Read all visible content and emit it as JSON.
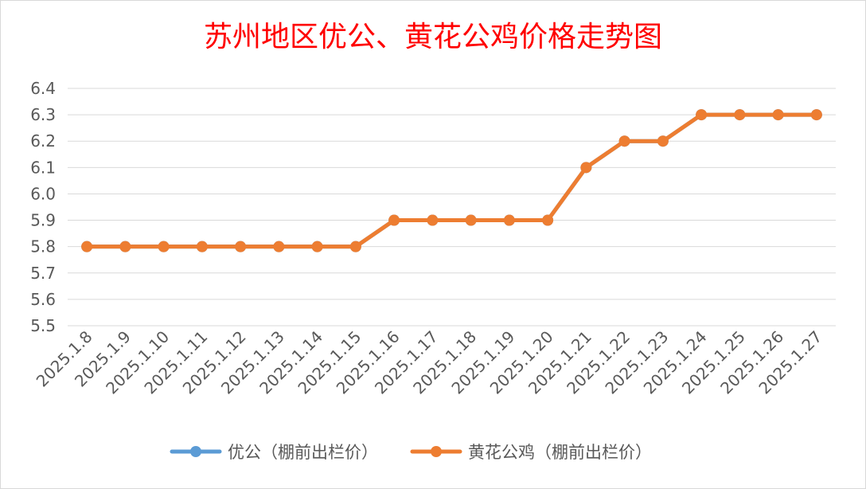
{
  "chart_data": {
    "type": "line",
    "title": "苏州地区优公、黄花公鸡价格走势图",
    "xlabel": "",
    "ylabel": "",
    "categories": [
      "2025.1.8",
      "2025.1.9",
      "2025.1.10",
      "2025.1.11",
      "2025.1.12",
      "2025.1.13",
      "2025.1.14",
      "2025.1.15",
      "2025.1.16",
      "2025.1.17",
      "2025.1.18",
      "2025.1.19",
      "2025.1.20",
      "2025.1.21",
      "2025.1.22",
      "2025.1.23",
      "2025.1.24",
      "2025.1.25",
      "2025.1.26",
      "2025.1.27"
    ],
    "yticks": [
      "5.5",
      "5.6",
      "5.7",
      "5.8",
      "5.9",
      "6.0",
      "6.1",
      "6.2",
      "6.3",
      "6.4"
    ],
    "ylim": [
      5.5,
      6.4
    ],
    "grid": true,
    "legend_position": "bottom",
    "series": [
      {
        "name": "优公（棚前出栏价）",
        "color": "#5b9bd5",
        "values": [
          5.8,
          5.8,
          5.8,
          5.8,
          5.8,
          5.8,
          5.8,
          5.8,
          5.9,
          5.9,
          5.9,
          5.9,
          5.9,
          6.1,
          6.2,
          6.2,
          6.3,
          6.3,
          6.3,
          6.3
        ]
      },
      {
        "name": "黄花公鸡（棚前出栏价）",
        "color": "#ed7d31",
        "values": [
          5.8,
          5.8,
          5.8,
          5.8,
          5.8,
          5.8,
          5.8,
          5.8,
          5.9,
          5.9,
          5.9,
          5.9,
          5.9,
          6.1,
          6.2,
          6.2,
          6.3,
          6.3,
          6.3,
          6.3
        ]
      }
    ]
  }
}
